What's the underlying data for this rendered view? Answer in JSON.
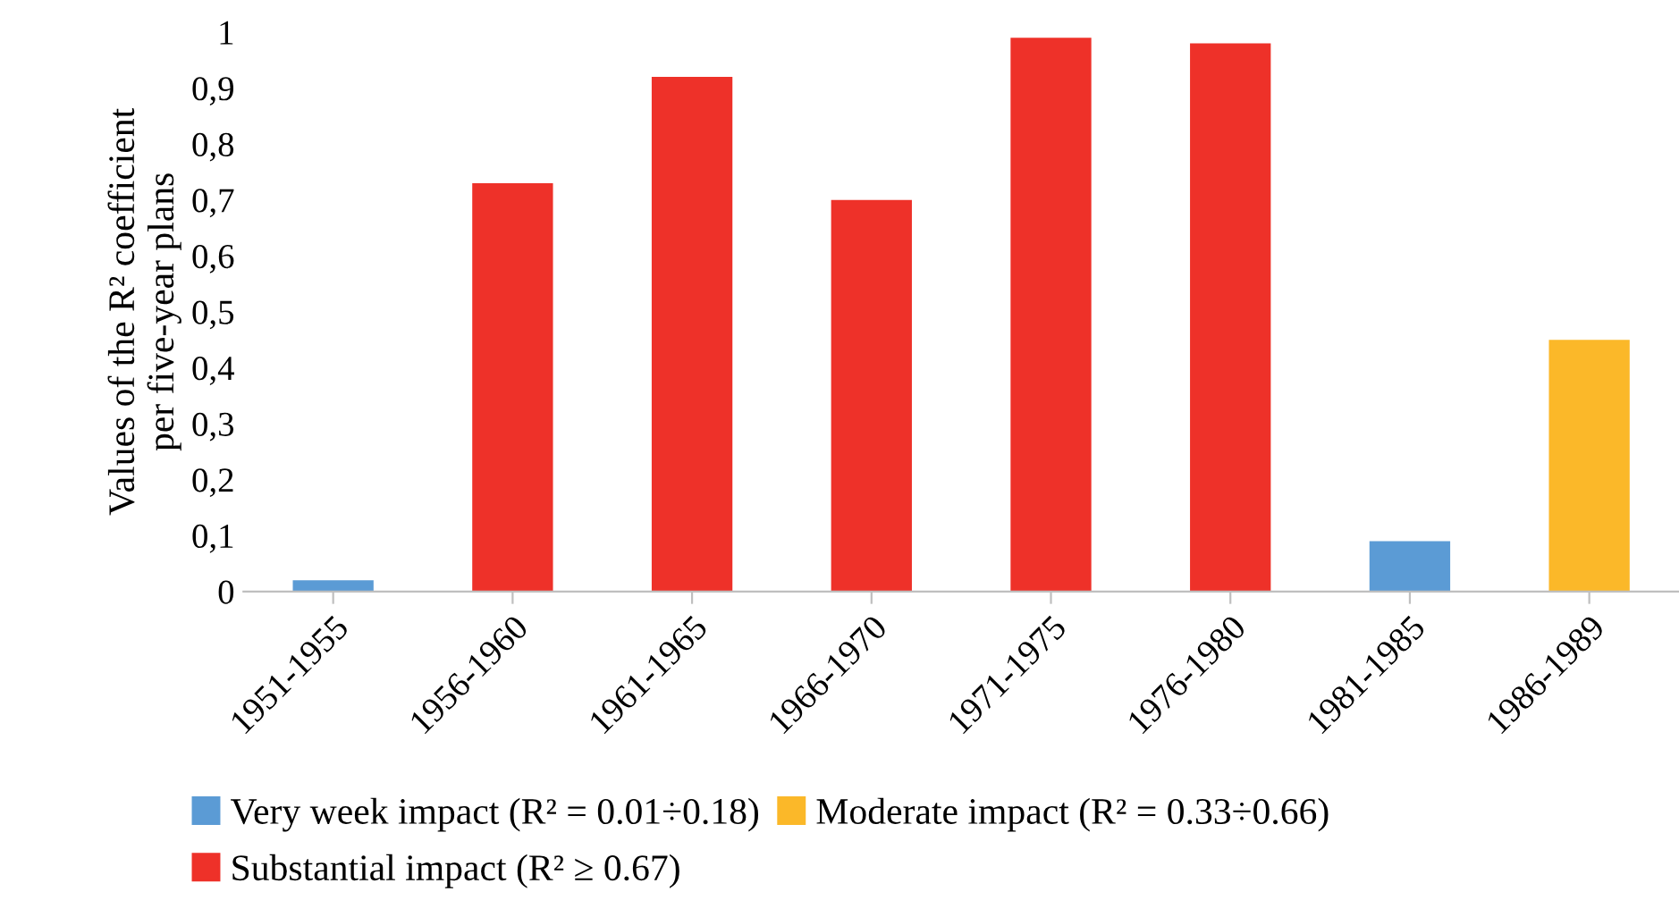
{
  "chart_data": {
    "type": "bar",
    "stacked": true,
    "ylabel": "Values of the R² coefficient\nper five-year plans",
    "categories": [
      "1951-1955",
      "1956-1960",
      "1961-1965",
      "1966-1970",
      "1971-1975",
      "1976-1980",
      "1981-1985",
      "1986-1989"
    ],
    "series": [
      {
        "name": "Very week impact (R² = 0.01÷0.18)",
        "color": "#5b9bd5",
        "values": [
          0.02,
          null,
          null,
          null,
          null,
          null,
          0.09,
          null
        ]
      },
      {
        "name": "Moderate impact (R² = 0.33÷0.66)",
        "color": "#fbb829",
        "values": [
          null,
          null,
          null,
          null,
          null,
          null,
          null,
          0.45
        ]
      },
      {
        "name": "Substantial impact (R² ≥ 0.67)",
        "color": "#ee3129",
        "values": [
          null,
          0.73,
          0.92,
          0.7,
          0.99,
          0.98,
          null,
          null
        ]
      }
    ],
    "ylim": [
      0,
      1
    ],
    "yticks": [
      0,
      {
        "value": 0.1,
        "label": "0,1"
      },
      {
        "value": 0.2,
        "label": "0,2"
      },
      {
        "value": 0.3,
        "label": "0,3"
      },
      {
        "value": 0.4,
        "label": "0,4"
      },
      {
        "value": 0.5,
        "label": "0,5"
      },
      {
        "value": 0.6,
        "label": "0,6"
      },
      {
        "value": 0.7,
        "label": "0,7"
      },
      {
        "value": 0.8,
        "label": "0,8"
      },
      {
        "value": 0.9,
        "label": "0,9"
      },
      1
    ],
    "grid": false,
    "legend": "bottom"
  }
}
